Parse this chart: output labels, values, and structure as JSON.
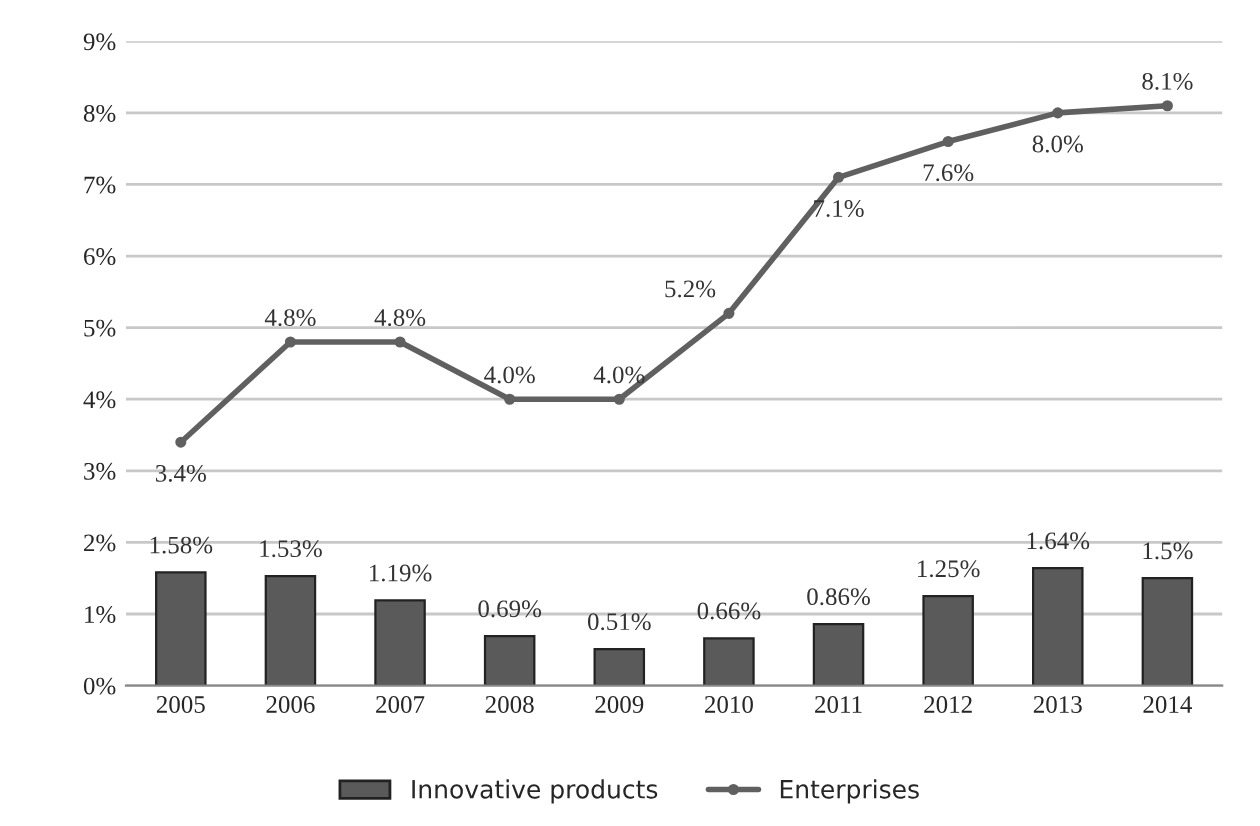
{
  "chart_data": {
    "type": "bar",
    "categories": [
      "2005",
      "2006",
      "2007",
      "2008",
      "2009",
      "2010",
      "2011",
      "2012",
      "2013",
      "2014"
    ],
    "series": [
      {
        "name": "Innovative products",
        "color": "#5a5a5a",
        "values": [
          1.58,
          1.53,
          1.19,
          0.69,
          0.51,
          0.66,
          0.86,
          1.25,
          1.64,
          1.5
        ],
        "value_labels": [
          "1.58%",
          "1.53%",
          "1.19%",
          "0.69%",
          "0.51%",
          "0.66%",
          "0.86%",
          "1.25%",
          "1.64%",
          "1.5%"
        ]
      },
      {
        "name": "Enterprises",
        "type": "line",
        "color": "#606060",
        "marker": "circle",
        "values": [
          3.4,
          4.8,
          4.8,
          4.0,
          4.0,
          5.2,
          7.1,
          7.6,
          8.0,
          8.1
        ],
        "value_labels": [
          "3.4%",
          "4.8%",
          "4.8%",
          "4.0%",
          "4.0%",
          "5.2%",
          "7.1%",
          "7.6%",
          "8.0%",
          "8.1%"
        ]
      }
    ],
    "ylim": [
      0,
      9
    ],
    "yticks": [
      {
        "value": 0,
        "label": "0%"
      },
      {
        "value": 1,
        "label": "1%"
      },
      {
        "value": 2,
        "label": "2%"
      },
      {
        "value": 3,
        "label": "3%"
      },
      {
        "value": 4,
        "label": "4%"
      },
      {
        "value": 5,
        "label": "5%"
      },
      {
        "value": 6,
        "label": "6%"
      },
      {
        "value": 7,
        "label": "7%"
      },
      {
        "value": 8,
        "label": "8%"
      },
      {
        "value": 9,
        "label": "9%"
      }
    ],
    "grid": "y",
    "legend": "bottom"
  }
}
